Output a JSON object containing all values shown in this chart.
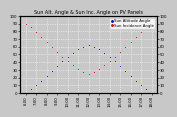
{
  "title": "Sun Alt. Angle & Sun Inc. Angle on PV Panels",
  "background_color": "#c8c8c8",
  "plot_bg_color": "#c8c8c8",
  "grid_color": "#ffffff",
  "series": [
    {
      "label": "Sun Altitude Angle",
      "color": "#0000cc",
      "marker": ".",
      "markersize": 1.5,
      "data_x": [
        6.0,
        6.5,
        7.0,
        7.5,
        8.0,
        8.5,
        9.0,
        9.5,
        10.0,
        10.5,
        11.0,
        11.5,
        12.0,
        12.5,
        13.0,
        13.5,
        14.0,
        14.5,
        15.0,
        15.5,
        16.0,
        16.5,
        17.0,
        17.5,
        18.0
      ],
      "data_y": [
        0,
        5,
        10,
        16,
        22,
        28,
        35,
        41,
        47,
        52,
        57,
        60,
        62,
        60,
        57,
        52,
        47,
        41,
        35,
        28,
        22,
        16,
        10,
        5,
        0
      ]
    },
    {
      "label": "Sun Incidence Angle",
      "color": "#cc0000",
      "marker": ".",
      "markersize": 1.5,
      "data_x": [
        6.0,
        6.5,
        7.0,
        7.5,
        8.0,
        8.5,
        9.0,
        9.5,
        10.0,
        10.5,
        11.0,
        11.5,
        12.0,
        12.5,
        13.0,
        13.5,
        14.0,
        14.5,
        15.0,
        15.5,
        16.0,
        16.5,
        17.0,
        17.5,
        18.0
      ],
      "data_y": [
        90,
        85,
        79,
        72,
        66,
        60,
        53,
        47,
        41,
        36,
        31,
        27,
        25,
        27,
        31,
        36,
        41,
        47,
        53,
        60,
        66,
        72,
        79,
        85,
        90
      ]
    }
  ],
  "xlim": [
    5.5,
    18.5
  ],
  "ylim": [
    0,
    100
  ],
  "xticks": [
    6,
    7,
    8,
    9,
    10,
    11,
    12,
    13,
    14,
    15,
    16,
    17,
    18
  ],
  "xtick_labels": [
    "6:00",
    "7:00",
    "8:00",
    "9:00",
    "10:00",
    "11:00",
    "12:00",
    "13:00",
    "14:00",
    "15:00",
    "16:00",
    "17:00",
    "18:00"
  ],
  "yticks": [
    0,
    10,
    20,
    30,
    40,
    50,
    60,
    70,
    80,
    90,
    100
  ],
  "ytick_labels": [
    "0",
    "10",
    "20",
    "30",
    "40",
    "50",
    "60",
    "70",
    "80",
    "90",
    "100"
  ],
  "title_fontsize": 3.5,
  "tick_fontsize": 2.8,
  "legend_fontsize": 2.8,
  "legend_loc": "upper right"
}
